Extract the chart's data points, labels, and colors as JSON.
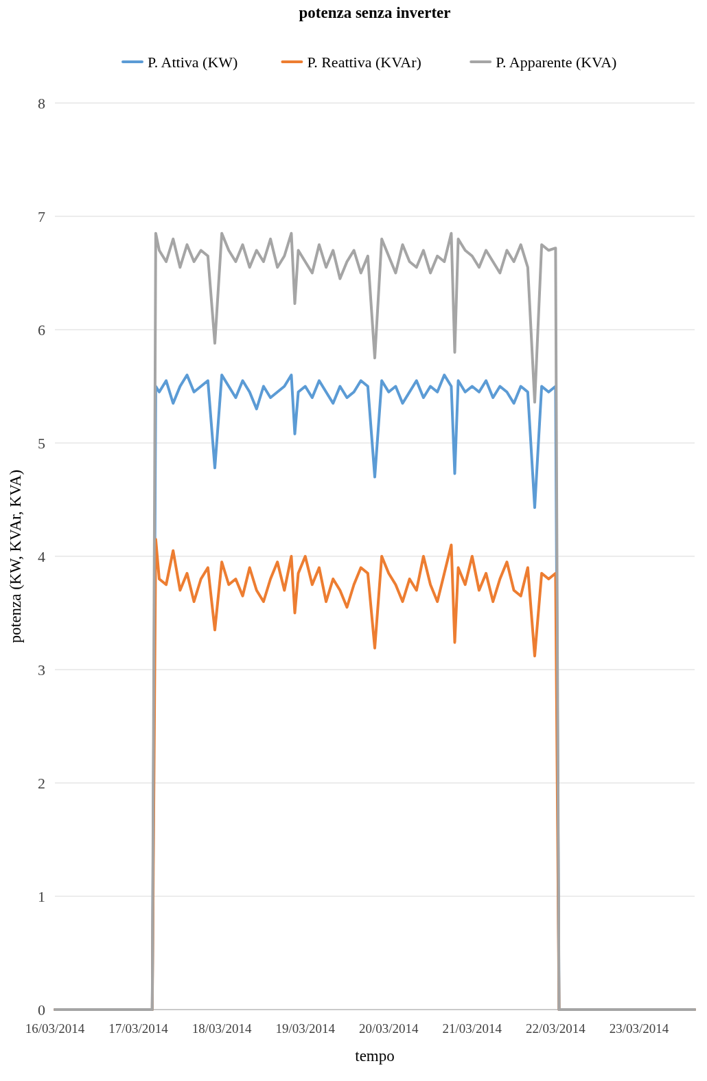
{
  "chart_data": {
    "type": "line",
    "title": "potenza senza inverter",
    "xlabel": "tempo",
    "ylabel": "potenza (KW, KVAr, KVA)",
    "x": [
      "2014-03-16T00:00",
      "2014-03-17T04:00",
      "2014-03-17T05:00",
      "2014-03-17T06:00",
      "2014-03-17T08:00",
      "2014-03-17T10:00",
      "2014-03-17T12:00",
      "2014-03-17T14:00",
      "2014-03-17T16:00",
      "2014-03-17T18:00",
      "2014-03-17T20:00",
      "2014-03-17T22:00",
      "2014-03-18T00:00",
      "2014-03-18T02:00",
      "2014-03-18T04:00",
      "2014-03-18T06:00",
      "2014-03-18T08:00",
      "2014-03-18T10:00",
      "2014-03-18T12:00",
      "2014-03-18T14:00",
      "2014-03-18T16:00",
      "2014-03-18T18:00",
      "2014-03-18T20:00",
      "2014-03-18T21:00",
      "2014-03-18T22:00",
      "2014-03-19T00:00",
      "2014-03-19T02:00",
      "2014-03-19T04:00",
      "2014-03-19T06:00",
      "2014-03-19T08:00",
      "2014-03-19T10:00",
      "2014-03-19T12:00",
      "2014-03-19T14:00",
      "2014-03-19T16:00",
      "2014-03-19T18:00",
      "2014-03-19T20:00",
      "2014-03-19T22:00",
      "2014-03-20T00:00",
      "2014-03-20T02:00",
      "2014-03-20T04:00",
      "2014-03-20T06:00",
      "2014-03-20T08:00",
      "2014-03-20T10:00",
      "2014-03-20T12:00",
      "2014-03-20T14:00",
      "2014-03-20T16:00",
      "2014-03-20T18:00",
      "2014-03-20T19:00",
      "2014-03-20T20:00",
      "2014-03-20T22:00",
      "2014-03-21T00:00",
      "2014-03-21T02:00",
      "2014-03-21T04:00",
      "2014-03-21T06:00",
      "2014-03-21T08:00",
      "2014-03-21T10:00",
      "2014-03-21T12:00",
      "2014-03-21T14:00",
      "2014-03-21T16:00",
      "2014-03-21T18:00",
      "2014-03-21T20:00",
      "2014-03-21T22:00",
      "2014-03-22T00:00",
      "2014-03-22T01:00",
      "2014-03-23T16:00"
    ],
    "series": [
      {
        "name": "P. Attiva (KW)",
        "color": "#5b9bd5",
        "values": [
          0,
          0,
          5.5,
          5.45,
          5.55,
          5.35,
          5.5,
          5.6,
          5.45,
          5.5,
          5.55,
          4.78,
          5.6,
          5.5,
          5.4,
          5.55,
          5.45,
          5.3,
          5.5,
          5.4,
          5.45,
          5.5,
          5.6,
          5.08,
          5.45,
          5.5,
          5.4,
          5.55,
          5.45,
          5.35,
          5.5,
          5.4,
          5.45,
          5.55,
          5.5,
          4.7,
          5.55,
          5.45,
          5.5,
          5.35,
          5.45,
          5.55,
          5.4,
          5.5,
          5.45,
          5.6,
          5.5,
          4.73,
          5.55,
          5.45,
          5.5,
          5.45,
          5.55,
          5.4,
          5.5,
          5.45,
          5.35,
          5.5,
          5.45,
          4.43,
          5.5,
          5.45,
          5.5,
          0,
          0
        ]
      },
      {
        "name": "P. Reattiva (KVAr)",
        "color": "#ed7d31",
        "values": [
          0,
          0,
          4.15,
          3.8,
          3.75,
          4.05,
          3.7,
          3.85,
          3.6,
          3.8,
          3.9,
          3.35,
          3.95,
          3.75,
          3.8,
          3.65,
          3.9,
          3.7,
          3.6,
          3.8,
          3.95,
          3.7,
          4.0,
          3.5,
          3.85,
          4.0,
          3.75,
          3.9,
          3.6,
          3.8,
          3.7,
          3.55,
          3.75,
          3.9,
          3.85,
          3.19,
          4.0,
          3.85,
          3.75,
          3.6,
          3.8,
          3.7,
          4.0,
          3.75,
          3.6,
          3.85,
          4.1,
          3.24,
          3.9,
          3.75,
          4.0,
          3.7,
          3.85,
          3.6,
          3.8,
          3.95,
          3.7,
          3.65,
          3.9,
          3.12,
          3.85,
          3.8,
          3.85,
          0,
          0
        ]
      },
      {
        "name": "P. Apparente (KVA)",
        "color": "#a5a5a5",
        "values": [
          0,
          0,
          6.85,
          6.7,
          6.6,
          6.8,
          6.55,
          6.75,
          6.6,
          6.7,
          6.65,
          5.88,
          6.85,
          6.7,
          6.6,
          6.75,
          6.55,
          6.7,
          6.6,
          6.8,
          6.55,
          6.65,
          6.85,
          6.23,
          6.7,
          6.6,
          6.5,
          6.75,
          6.55,
          6.7,
          6.45,
          6.6,
          6.7,
          6.5,
          6.65,
          5.75,
          6.8,
          6.65,
          6.5,
          6.75,
          6.6,
          6.55,
          6.7,
          6.5,
          6.65,
          6.6,
          6.85,
          5.8,
          6.8,
          6.7,
          6.65,
          6.55,
          6.7,
          6.6,
          6.5,
          6.7,
          6.6,
          6.75,
          6.55,
          5.36,
          6.75,
          6.7,
          6.72,
          0,
          0
        ]
      }
    ],
    "xlim": [
      "2014-03-16T00:00",
      "2014-03-23T16:00"
    ],
    "xticks": [
      {
        "value": "2014-03-16",
        "label": "16/03/2014"
      },
      {
        "value": "2014-03-17",
        "label": "17/03/2014"
      },
      {
        "value": "2014-03-18",
        "label": "18/03/2014"
      },
      {
        "value": "2014-03-19",
        "label": "19/03/2014"
      },
      {
        "value": "2014-03-20",
        "label": "20/03/2014"
      },
      {
        "value": "2014-03-21",
        "label": "21/03/2014"
      },
      {
        "value": "2014-03-22",
        "label": "22/03/2014"
      },
      {
        "value": "2014-03-23",
        "label": "23/03/2014"
      }
    ],
    "ylim": [
      0,
      8
    ],
    "yticks": [
      0,
      1,
      2,
      3,
      4,
      5,
      6,
      7,
      8
    ],
    "grid": "y",
    "legend": "top",
    "marker": "none",
    "line_style": "solid"
  }
}
